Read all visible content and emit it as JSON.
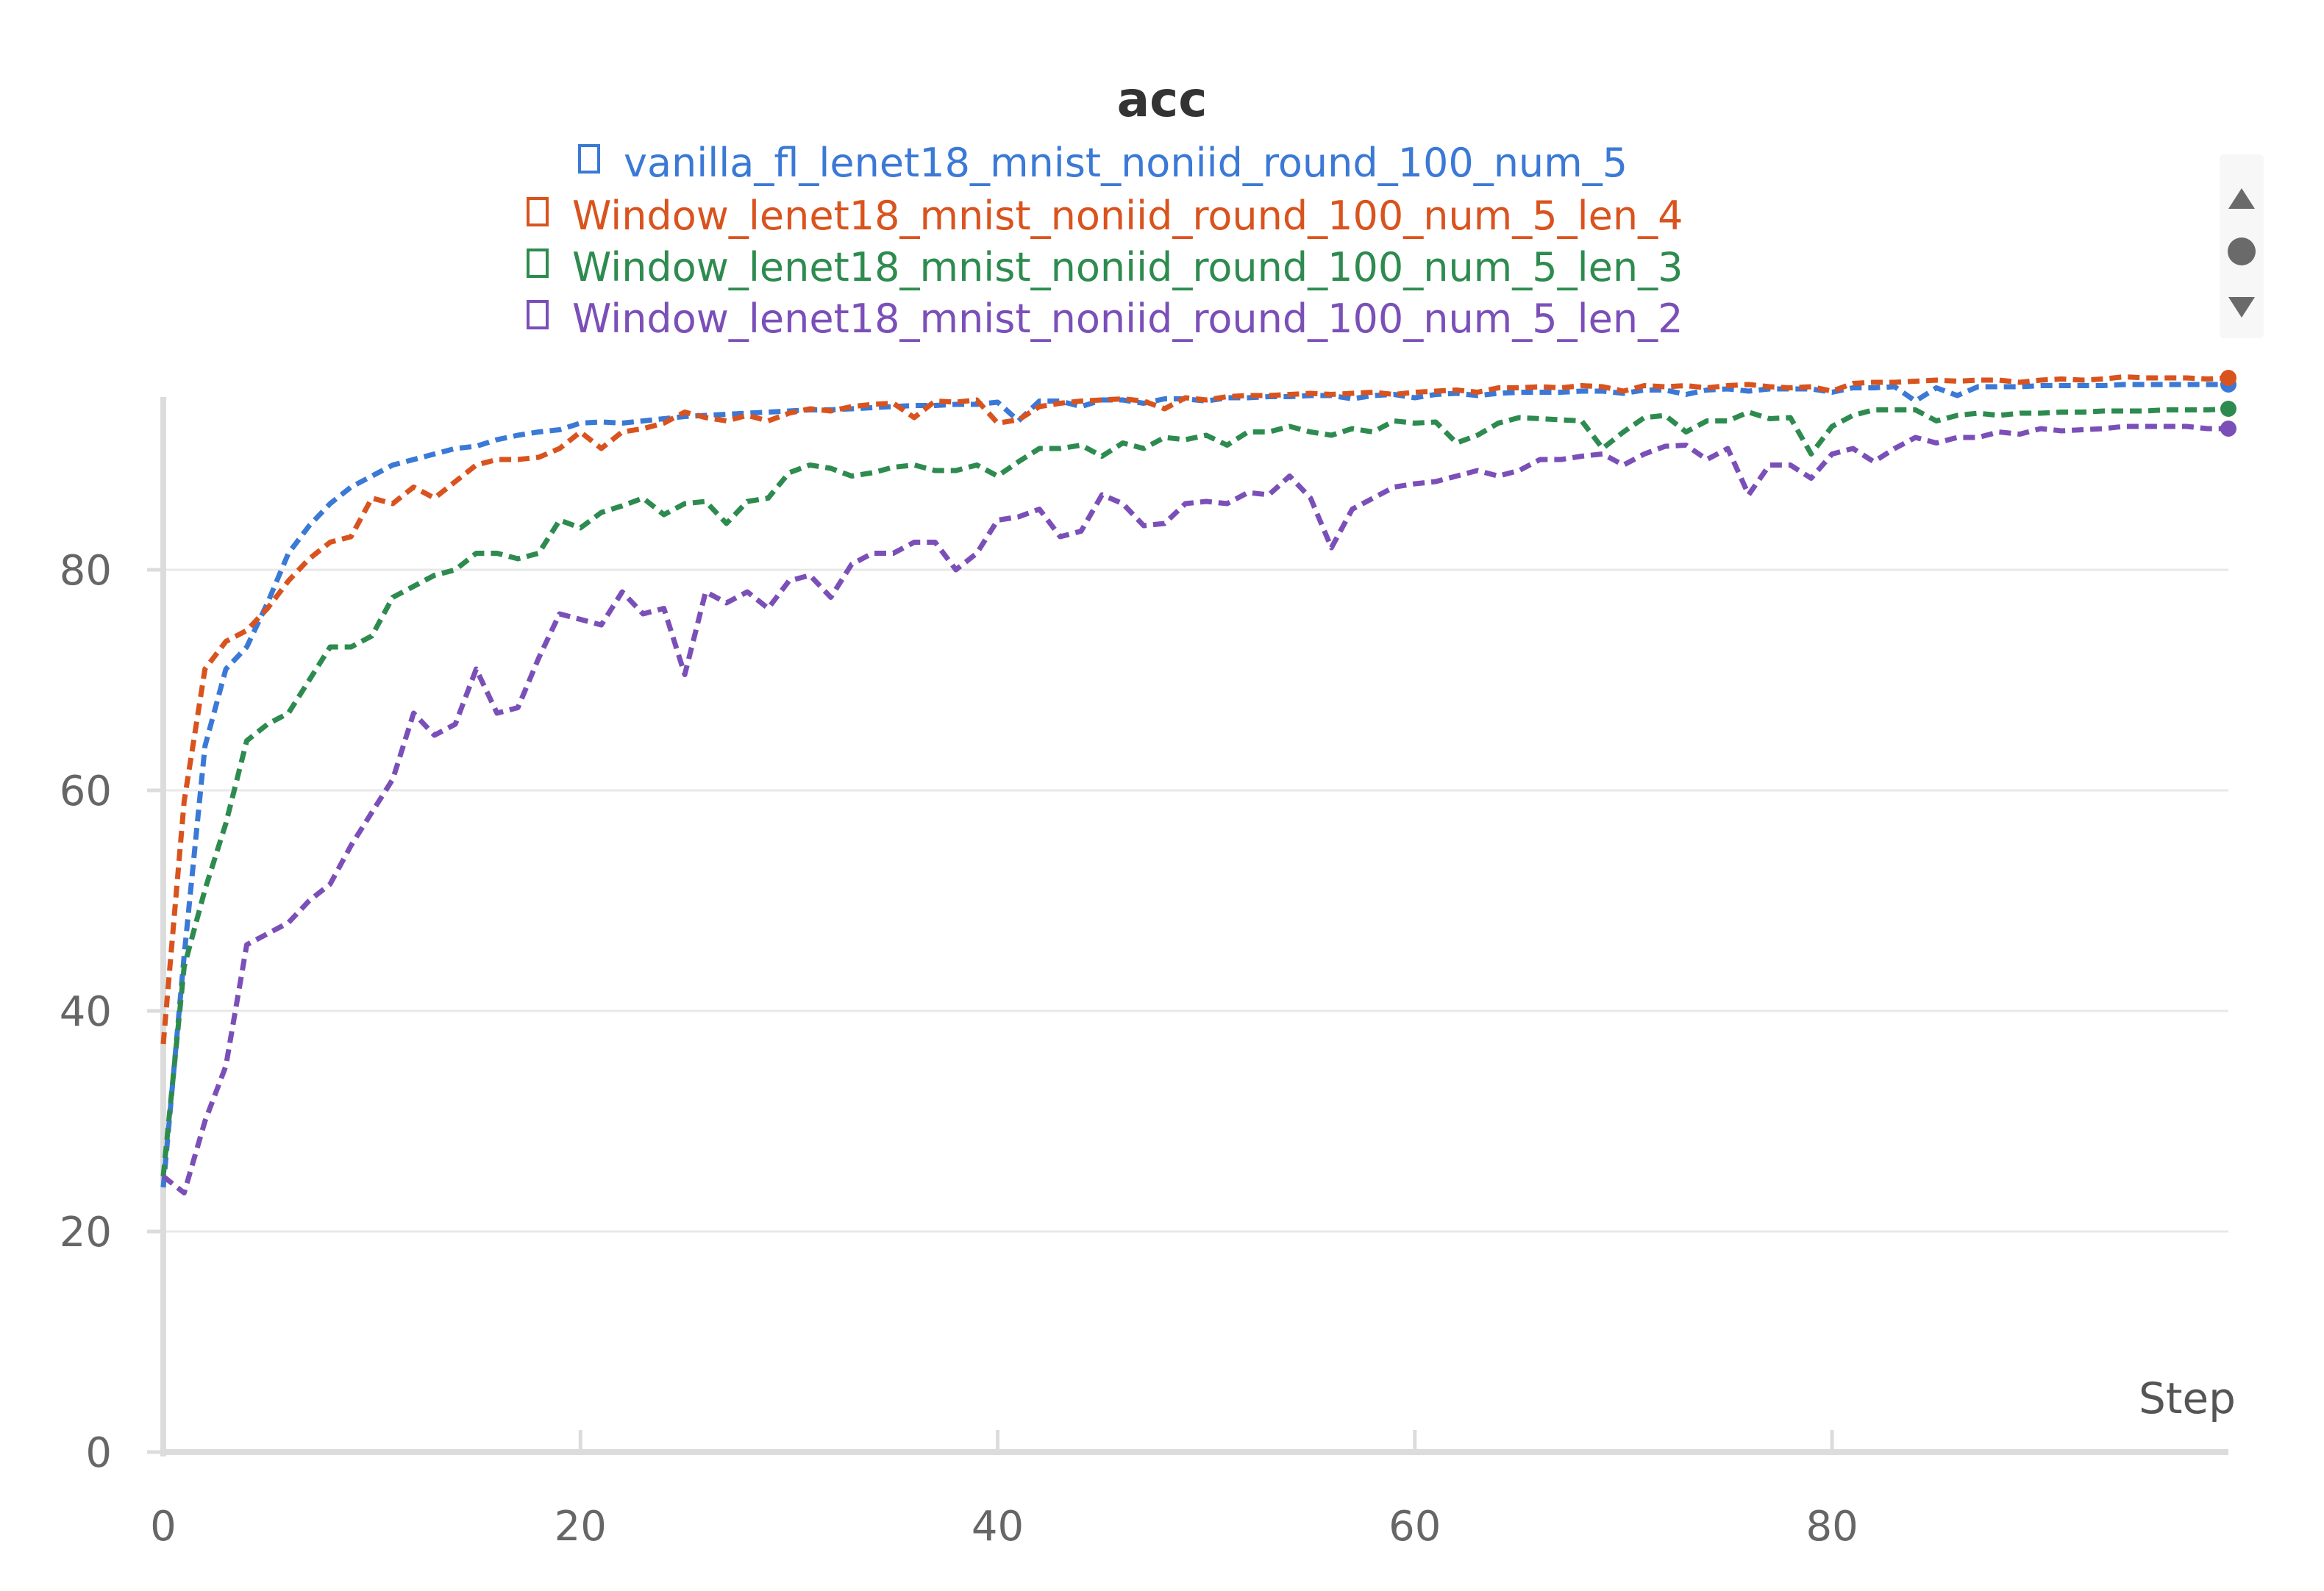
{
  "chart_data": {
    "type": "line",
    "title": "acc",
    "xlabel": "Step",
    "ylabel": "",
    "xlim": [
      0,
      99
    ],
    "ylim": [
      0,
      97
    ],
    "xticks": [
      0,
      20,
      40,
      60,
      80
    ],
    "yticks": [
      0,
      20,
      40,
      60,
      80
    ],
    "grid": true,
    "legend_position": "top-center",
    "line_style": "dashed",
    "series": [
      {
        "name": "vanilla_fl_lenet18_mnist_noniid_round_100_num_5",
        "color": "#3b79d6",
        "x": [
          0,
          1,
          2,
          3,
          4,
          5,
          6,
          7,
          8,
          9,
          10,
          11,
          12,
          13,
          14,
          15,
          16,
          17,
          18,
          19,
          20,
          21,
          22,
          23,
          24,
          25,
          26,
          27,
          28,
          29,
          30,
          31,
          32,
          33,
          34,
          35,
          36,
          37,
          38,
          39,
          40,
          41,
          42,
          43,
          44,
          45,
          46,
          47,
          48,
          49,
          50,
          51,
          52,
          53,
          54,
          55,
          56,
          57,
          58,
          59,
          60,
          61,
          62,
          63,
          64,
          65,
          66,
          67,
          68,
          69,
          70,
          71,
          72,
          73,
          74,
          75,
          76,
          77,
          78,
          79,
          80,
          81,
          82,
          83,
          84,
          85,
          86,
          87,
          88,
          89,
          90,
          91,
          92,
          93,
          94,
          95,
          96,
          97,
          98,
          99
        ],
        "values": [
          24,
          45,
          64,
          71,
          73,
          77,
          81.5,
          84,
          86,
          87.5,
          88.5,
          89.5,
          90,
          90.5,
          91,
          91.2,
          91.8,
          92.2,
          92.5,
          92.7,
          93.3,
          93.4,
          93.3,
          93.5,
          93.7,
          93.9,
          94,
          94.1,
          94.2,
          94.3,
          94.4,
          94.5,
          94.5,
          94.6,
          94.7,
          94.8,
          94.9,
          94.9,
          95,
          95,
          95.2,
          93.5,
          95.3,
          95.3,
          94.8,
          95.4,
          95.4,
          95.1,
          95.5,
          95.5,
          95.3,
          95.6,
          95.6,
          95.7,
          95.7,
          95.8,
          95.8,
          95.5,
          95.8,
          95.9,
          95.6,
          95.9,
          96,
          95.8,
          96,
          96.1,
          96.1,
          96.1,
          96.2,
          96.2,
          96,
          96.3,
          96.3,
          95.9,
          96.3,
          96.4,
          96.2,
          96.4,
          96.4,
          96.4,
          96.1,
          96.5,
          96.5,
          96.6,
          95.3,
          96.5,
          95.8,
          96.6,
          96.6,
          96.6,
          96.7,
          96.7,
          96.7,
          96.7,
          96.8,
          96.8,
          96.8,
          96.8,
          96.8,
          96.8
        ]
      },
      {
        "name": "Window_lenet18_mnist_noniid_round_100_num_5_len_4",
        "color": "#d9531e",
        "x": [
          0,
          1,
          2,
          3,
          4,
          5,
          6,
          7,
          8,
          9,
          10,
          11,
          12,
          13,
          14,
          15,
          16,
          17,
          18,
          19,
          20,
          21,
          22,
          23,
          24,
          25,
          26,
          27,
          28,
          29,
          30,
          31,
          32,
          33,
          34,
          35,
          36,
          37,
          38,
          39,
          40,
          41,
          42,
          43,
          44,
          45,
          46,
          47,
          48,
          49,
          50,
          51,
          52,
          53,
          54,
          55,
          56,
          57,
          58,
          59,
          60,
          61,
          62,
          63,
          64,
          65,
          66,
          67,
          68,
          69,
          70,
          71,
          72,
          73,
          74,
          75,
          76,
          77,
          78,
          79,
          80,
          81,
          82,
          83,
          84,
          85,
          86,
          87,
          88,
          89,
          90,
          91,
          92,
          93,
          94,
          95,
          96,
          97,
          98,
          99
        ],
        "values": [
          37,
          59,
          71,
          73.5,
          74.5,
          76.5,
          79,
          81,
          82.5,
          83,
          86.5,
          86,
          87.5,
          86.5,
          88,
          89.5,
          90,
          90,
          90.2,
          91,
          92.5,
          91,
          92.5,
          92.8,
          93.3,
          94.3,
          93.8,
          93.5,
          94,
          93.5,
          94.2,
          94.6,
          94.4,
          94.8,
          95,
          95.1,
          93.8,
          95.3,
          95.2,
          95.4,
          93.3,
          93.6,
          94.8,
          95.1,
          95.3,
          95.4,
          95.5,
          95.3,
          94.6,
          95.6,
          95.4,
          95.7,
          95.8,
          95.8,
          95.9,
          96,
          95.9,
          96,
          96.1,
          95.9,
          96.1,
          96.2,
          96.3,
          96.1,
          96.5,
          96.5,
          96.6,
          96.5,
          96.7,
          96.6,
          96.2,
          96.7,
          96.6,
          96.7,
          96.5,
          96.7,
          96.8,
          96.6,
          96.5,
          96.6,
          96.2,
          96.9,
          97,
          97,
          97.1,
          97.2,
          97.1,
          97.2,
          97.2,
          97,
          97.2,
          97.3,
          97.2,
          97.3,
          97.5,
          97.4,
          97.4,
          97.4,
          97.3,
          97.4
        ]
      },
      {
        "name": "Window_lenet18_mnist_noniid_round_100_num_5_len_3",
        "color": "#2e8b4f",
        "x": [
          0,
          1,
          2,
          3,
          4,
          5,
          6,
          7,
          8,
          9,
          10,
          11,
          12,
          13,
          14,
          15,
          16,
          17,
          18,
          19,
          20,
          21,
          22,
          23,
          24,
          25,
          26,
          27,
          28,
          29,
          30,
          31,
          32,
          33,
          34,
          35,
          36,
          37,
          38,
          39,
          40,
          41,
          42,
          43,
          44,
          45,
          46,
          47,
          48,
          49,
          50,
          51,
          52,
          53,
          54,
          55,
          56,
          57,
          58,
          59,
          60,
          61,
          62,
          63,
          64,
          65,
          66,
          67,
          68,
          69,
          70,
          71,
          72,
          73,
          74,
          75,
          76,
          77,
          78,
          79,
          80,
          81,
          82,
          83,
          84,
          85,
          86,
          87,
          88,
          89,
          90,
          91,
          92,
          93,
          94,
          95,
          96,
          97,
          98,
          99
        ],
        "values": [
          25,
          44,
          51,
          57,
          64.5,
          66,
          67,
          70,
          73,
          73,
          74,
          77.5,
          78.5,
          79.5,
          80,
          81.5,
          81.5,
          81,
          81.5,
          84.5,
          83.8,
          85.2,
          85.8,
          86.5,
          85,
          86,
          86.2,
          84.2,
          86.2,
          86.5,
          88.8,
          89.5,
          89.2,
          88.5,
          88.8,
          89.3,
          89.5,
          89,
          89,
          89.5,
          88.5,
          89.8,
          91,
          91,
          91.3,
          90.3,
          91.5,
          91,
          92,
          91.8,
          92.2,
          91.3,
          92.5,
          92.5,
          93,
          92.5,
          92.2,
          92.8,
          92.5,
          93.5,
          93.3,
          93.4,
          91.5,
          92.2,
          93.3,
          93.8,
          93.7,
          93.6,
          93.5,
          91,
          92.5,
          93.8,
          94,
          92.5,
          93.5,
          93.5,
          94.3,
          93.7,
          93.8,
          90.5,
          93,
          94,
          94.5,
          94.5,
          94.5,
          93.5,
          94,
          94.2,
          94,
          94.2,
          94.2,
          94.3,
          94.3,
          94.4,
          94.4,
          94.4,
          94.5,
          94.5,
          94.5,
          94.6
        ]
      },
      {
        "name": "Window_lenet18_mnist_noniid_round_100_num_5_len_2",
        "color": "#7b4fb8",
        "x": [
          0,
          1,
          2,
          3,
          4,
          5,
          6,
          7,
          8,
          9,
          10,
          11,
          12,
          13,
          14,
          15,
          16,
          17,
          18,
          19,
          20,
          21,
          22,
          23,
          24,
          25,
          26,
          27,
          28,
          29,
          30,
          31,
          32,
          33,
          34,
          35,
          36,
          37,
          38,
          39,
          40,
          41,
          42,
          43,
          44,
          45,
          46,
          47,
          48,
          49,
          50,
          51,
          52,
          53,
          54,
          55,
          56,
          57,
          58,
          59,
          60,
          61,
          62,
          63,
          64,
          65,
          66,
          67,
          68,
          69,
          70,
          71,
          72,
          73,
          74,
          75,
          76,
          77,
          78,
          79,
          80,
          81,
          82,
          83,
          84,
          85,
          86,
          87,
          88,
          89,
          90,
          91,
          92,
          93,
          94,
          95,
          96,
          97,
          98,
          99
        ],
        "values": [
          25,
          23.5,
          30,
          35,
          46,
          47,
          48,
          50,
          51.5,
          55,
          58,
          61,
          67,
          65,
          66,
          71,
          67,
          67.5,
          72,
          76,
          75.5,
          75,
          78,
          76,
          76.5,
          70.5,
          78,
          77,
          78,
          76.5,
          79,
          79.5,
          77.5,
          80.5,
          81.5,
          81.5,
          82.5,
          82.5,
          80,
          81.5,
          84.5,
          84.8,
          85.5,
          83,
          83.5,
          86.8,
          86,
          84,
          84.2,
          86,
          86.2,
          86,
          87,
          86.8,
          88.5,
          86.5,
          82,
          85.5,
          86.5,
          87.5,
          87.8,
          88,
          88.5,
          89,
          88.5,
          89,
          90,
          90,
          90.3,
          90.5,
          89.5,
          90.5,
          91.2,
          91.3,
          90,
          91,
          86.8,
          89.5,
          89.5,
          88.3,
          90.5,
          91,
          89.8,
          91,
          92,
          91.5,
          92,
          92,
          92.5,
          92.3,
          92.8,
          92.6,
          92.7,
          92.8,
          93,
          93,
          93,
          93,
          92.8,
          92.8
        ]
      }
    ]
  },
  "legend_controls": {
    "up_icon": "triangle-up-icon",
    "dot_icon": "circle-icon",
    "down_icon": "triangle-down-icon"
  }
}
